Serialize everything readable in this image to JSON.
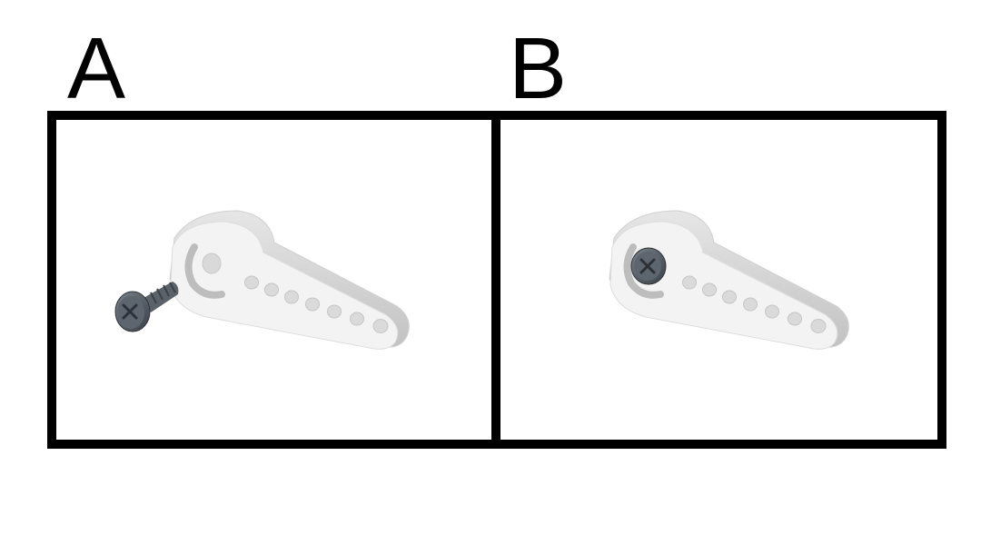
{
  "panels": [
    {
      "label": "A",
      "step": "screw-separate-from-horn"
    },
    {
      "label": "B",
      "step": "screw-inserted-into-horn"
    }
  ],
  "colors": {
    "frame": "#000000",
    "horn_top": "#f3f3f3",
    "horn_side": "#cfcfcf",
    "screw": "#4a5058"
  },
  "icons": {
    "horn": "servo-horn-icon",
    "screw": "phillips-screw-icon"
  }
}
